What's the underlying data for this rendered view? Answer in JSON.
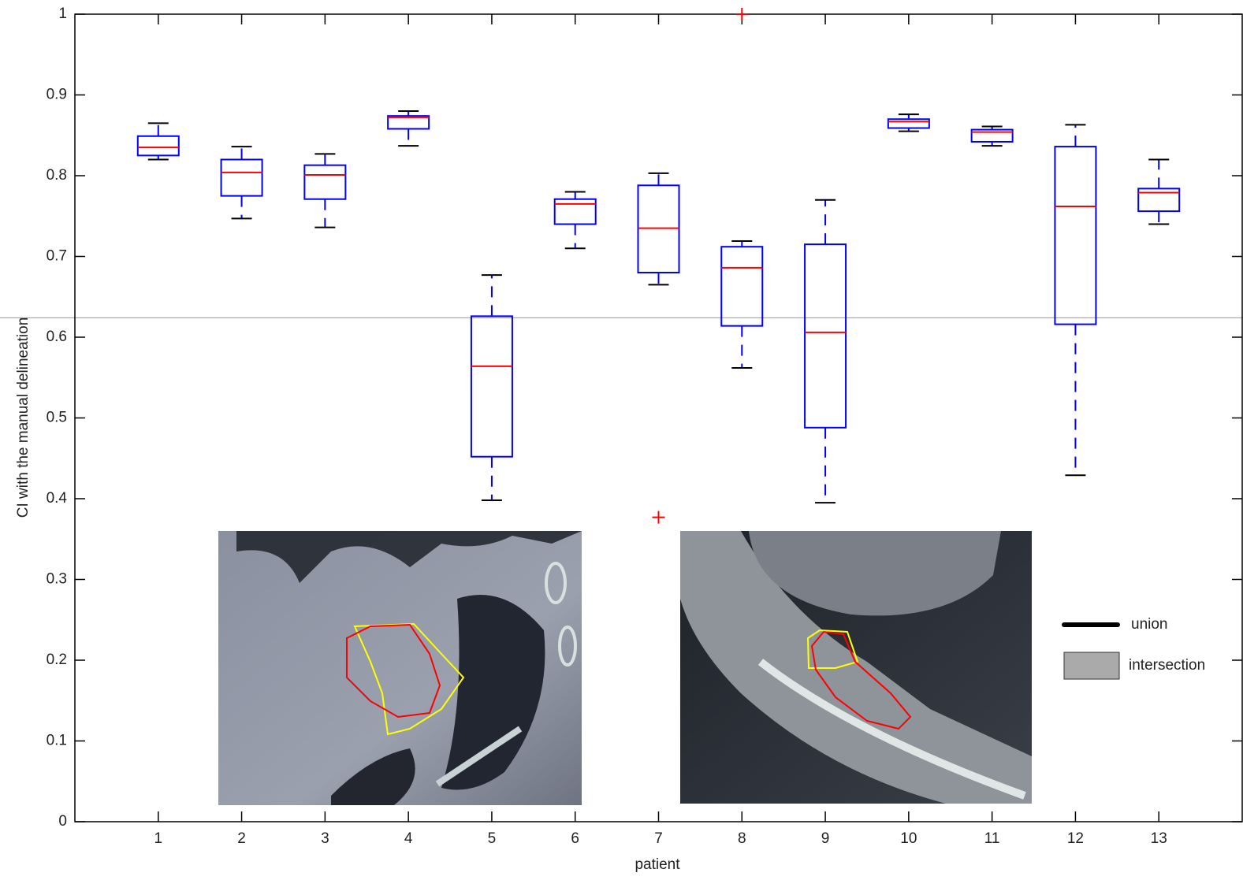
{
  "chart_data": {
    "type": "box",
    "x_label": "patient",
    "y_label": "CI with the manual delineation",
    "x": [
      1,
      2,
      3,
      4,
      5,
      6,
      7,
      8,
      9,
      10,
      11,
      12,
      13
    ],
    "boxes": [
      {
        "low": 0.82,
        "q1": 0.825,
        "median": 0.835,
        "q3": 0.849,
        "high": 0.865
      },
      {
        "low": 0.747,
        "q1": 0.775,
        "median": 0.804,
        "q3": 0.82,
        "high": 0.836
      },
      {
        "low": 0.736,
        "q1": 0.771,
        "median": 0.801,
        "q3": 0.813,
        "high": 0.827
      },
      {
        "low": 0.837,
        "q1": 0.858,
        "median": 0.872,
        "q3": 0.874,
        "high": 0.88
      },
      {
        "low": 0.398,
        "q1": 0.452,
        "median": 0.564,
        "q3": 0.626,
        "high": 0.677
      },
      {
        "low": 0.71,
        "q1": 0.74,
        "median": 0.765,
        "q3": 0.771,
        "high": 0.78
      },
      {
        "low": 0.665,
        "q1": 0.68,
        "median": 0.735,
        "q3": 0.788,
        "high": 0.803
      },
      {
        "low": 0.562,
        "q1": 0.614,
        "median": 0.686,
        "q3": 0.712,
        "high": 0.719
      },
      {
        "low": 0.395,
        "q1": 0.488,
        "median": 0.606,
        "q3": 0.715,
        "high": 0.77
      },
      {
        "low": 0.855,
        "q1": 0.859,
        "median": 0.867,
        "q3": 0.87,
        "high": 0.876
      },
      {
        "low": 0.837,
        "q1": 0.842,
        "median": 0.854,
        "q3": 0.857,
        "high": 0.861
      },
      {
        "low": 0.429,
        "q1": 0.616,
        "median": 0.762,
        "q3": 0.836,
        "high": 0.863
      },
      {
        "low": 0.74,
        "q1": 0.756,
        "median": 0.779,
        "q3": 0.784,
        "high": 0.82
      }
    ],
    "outliers": [
      {
        "x": 7,
        "y": 0.377
      },
      {
        "x": 8,
        "y": 1.0
      }
    ],
    "box_color": "#0000ff",
    "median_color": "#ff0000",
    "outlier_color": "#ff0000",
    "reference_line": 0.624,
    "legend_labels": [
      "union",
      "intersection"
    ],
    "xlim": [
      0,
      14
    ],
    "xticks": [
      1,
      2,
      3,
      4,
      5,
      6,
      7,
      8,
      9,
      10,
      11,
      12,
      13
    ],
    "ylim": [
      0,
      1
    ],
    "yticks": [
      0,
      0.1,
      0.2,
      0.3,
      0.4,
      0.5,
      0.6,
      0.7,
      0.8,
      0.9,
      1
    ]
  }
}
